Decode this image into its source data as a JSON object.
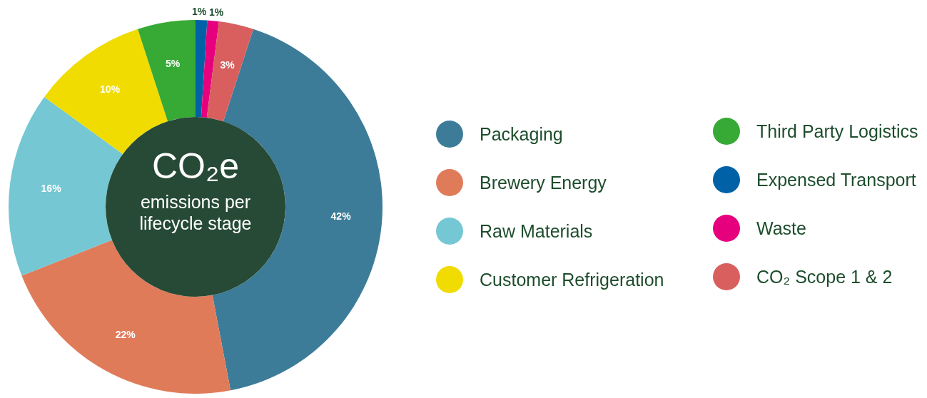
{
  "chart_data": {
    "type": "donut",
    "title": "CO₂e",
    "subtitle": "emissions per lifecycle stage",
    "categories": [
      "Packaging",
      "Brewery Energy",
      "Raw Materials",
      "Customer Refrigeration",
      "Third Party Logistics",
      "Expensed Transport",
      "Waste",
      "CO₂ Scope 1 & 2"
    ],
    "values": [
      42,
      22,
      16,
      10,
      5,
      1,
      1,
      3
    ],
    "colors": [
      "#3d7c98",
      "#e07b5a",
      "#74c7d3",
      "#f0dc00",
      "#37a935",
      "#0061a6",
      "#e6007e",
      "#d95f5f"
    ],
    "value_labels": [
      "42%",
      "22%",
      "16%",
      "10%",
      "5%",
      "1%",
      "1%",
      "3%"
    ],
    "legend": "right"
  }
}
